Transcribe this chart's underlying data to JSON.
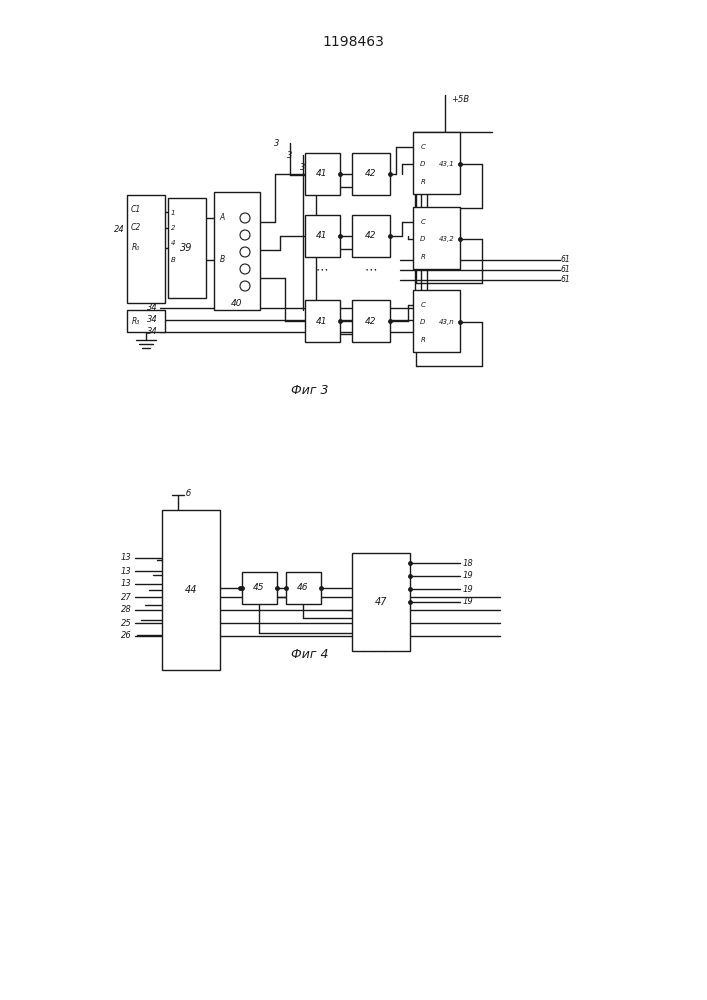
{
  "title": "1198463",
  "fig3_caption": "Фиг 3",
  "fig4_caption": "Фиг 4",
  "bg_color": "#ffffff",
  "line_color": "#1a1a1a",
  "lw": 1.0
}
